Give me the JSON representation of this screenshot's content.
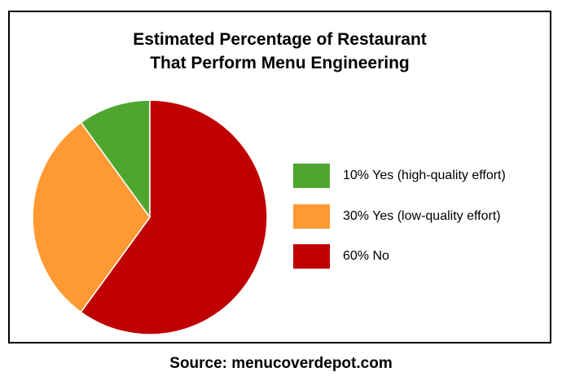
{
  "chart_data": {
    "type": "pie",
    "title": "Estimated Percentage of Restaurant That Perform Menu Engineering",
    "title_lines": [
      "Estimated Percentage of Restaurant",
      "That Perform Menu Engineering"
    ],
    "slices": [
      {
        "label": "10% Yes (high-quality effort)",
        "value": 10,
        "color": "#4fa62f"
      },
      {
        "label": "30% Yes (low-quality effort)",
        "value": 30,
        "color": "#ff9933"
      },
      {
        "label": "60% No",
        "value": 60,
        "color": "#c00000"
      }
    ],
    "legend_position": "right"
  },
  "source": "Source: menucoverdepot.com"
}
